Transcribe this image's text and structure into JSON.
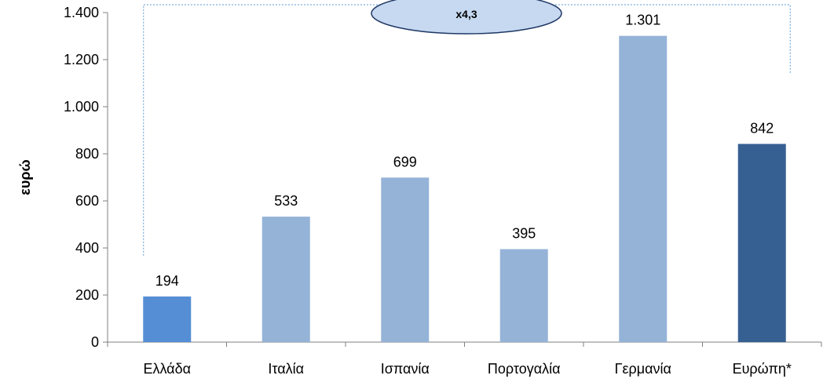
{
  "chart_data": {
    "type": "bar",
    "ylabel": "ευρώ",
    "xlabel": "",
    "ylim": [
      0,
      1400
    ],
    "yticks": [
      0,
      200,
      400,
      600,
      800,
      1000,
      1200,
      1400
    ],
    "ytick_labels": [
      "0",
      "200",
      "400",
      "600",
      "800",
      "1.000",
      "1.200",
      "1.400"
    ],
    "categories": [
      "Ελλάδα",
      "Ιταλία",
      "Ισπανία",
      "Πορτογαλία",
      "Γερμανία",
      "Ευρώπη*"
    ],
    "values": [
      194,
      533,
      699,
      395,
      1301,
      842
    ],
    "value_labels": [
      "194",
      "533",
      "699",
      "395",
      "1.301",
      "842"
    ],
    "bar_colors": [
      "#558ED5",
      "#95B3D7",
      "#95B3D7",
      "#95B3D7",
      "#95B3D7",
      "#376092"
    ],
    "grid": false,
    "annotation": {
      "text": "x4,3",
      "fill": "#C6D9F1",
      "stroke": "#1F3864",
      "connector_color": "#5B9BD5",
      "from_category": "Ελλάδα",
      "to_category": "Ευρώπη*"
    }
  }
}
